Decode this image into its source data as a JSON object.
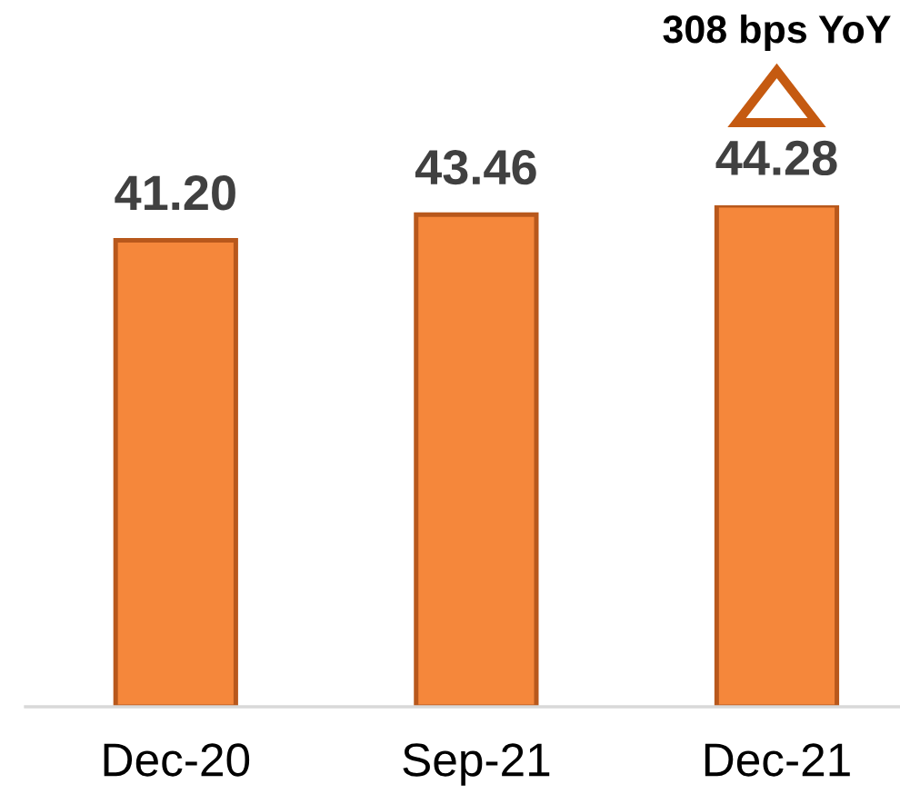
{
  "chart_data": {
    "type": "bar",
    "categories": [
      "Dec-20",
      "Sep-21",
      "Dec-21"
    ],
    "values": [
      41.2,
      43.46,
      44.28
    ],
    "value_labels": [
      "41.20",
      "43.46",
      "44.28"
    ],
    "color": "#f5873b",
    "grid": false,
    "legend": false,
    "annotations": [
      "308 bps YoY"
    ]
  }
}
